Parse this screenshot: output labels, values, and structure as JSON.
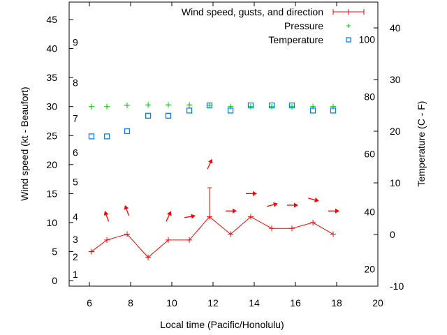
{
  "chart_data": {
    "type": "line",
    "xlabel": "Local time (Pacific/Honolulu)",
    "ylabel": "Wind speed (kt - Beaufort)",
    "y2label": "Temperature (C - F)",
    "xlim": [
      5,
      20
    ],
    "ylim": [
      -1,
      48
    ],
    "y2lim": [
      -10,
      45
    ],
    "x_ticks": [
      6,
      8,
      10,
      12,
      14,
      16,
      18,
      20
    ],
    "y_ticks": [
      0,
      5,
      10,
      15,
      20,
      25,
      30,
      35,
      40,
      45
    ],
    "y2_ticks": [
      -10,
      0,
      10,
      20,
      30,
      40
    ],
    "beaufort_labels": [
      {
        "label": "1",
        "kt": 1.1
      },
      {
        "label": "2",
        "kt": 4.1
      },
      {
        "label": "3",
        "kt": 7.1
      },
      {
        "label": "4",
        "kt": 11
      },
      {
        "label": "5",
        "kt": 17
      },
      {
        "label": "6",
        "kt": 22.1
      },
      {
        "label": "7",
        "kt": 28
      },
      {
        "label": "8",
        "kt": 34.1
      },
      {
        "label": "9",
        "kt": 41.1
      }
    ],
    "fahrenheit_labels": [
      {
        "label": "20",
        "c": -6.7
      },
      {
        "label": "40",
        "c": 4.4
      },
      {
        "label": "60",
        "c": 15.6
      },
      {
        "label": "80",
        "c": 26.7
      },
      {
        "label": "100",
        "c": 37.8
      }
    ],
    "legend": {
      "position": "top-right",
      "entries": [
        "Wind speed, gusts, and direction",
        "Pressure",
        "Temperature"
      ]
    },
    "x": [
      6.1,
      6.85,
      7.83,
      8.85,
      9.83,
      10.85,
      11.83,
      12.85,
      13.83,
      14.85,
      15.83,
      16.85,
      17.83
    ],
    "series": [
      {
        "name": "Wind speed",
        "color": "#ff0000",
        "values": [
          5,
          7,
          8,
          4,
          7,
          7,
          11,
          8,
          11,
          9,
          9,
          10,
          8
        ],
        "gusts": [
          null,
          null,
          null,
          null,
          null,
          null,
          16,
          null,
          null,
          null,
          null,
          null,
          null
        ],
        "direction_to_deg": [
          null,
          340,
          340,
          null,
          25,
          80,
          25,
          90,
          90,
          75,
          90,
          105,
          90
        ]
      },
      {
        "name": "Pressure",
        "color": "#00c000",
        "values": [
          30,
          30,
          30.2,
          30.3,
          30.3,
          30.3,
          30.2,
          30,
          30,
          30,
          30,
          30,
          30
        ]
      },
      {
        "name": "Temperature",
        "color": "#0080ff",
        "axis": "right",
        "values": [
          19,
          19,
          20,
          23,
          23,
          24,
          25,
          24,
          25,
          25,
          25,
          24,
          24
        ]
      }
    ]
  }
}
